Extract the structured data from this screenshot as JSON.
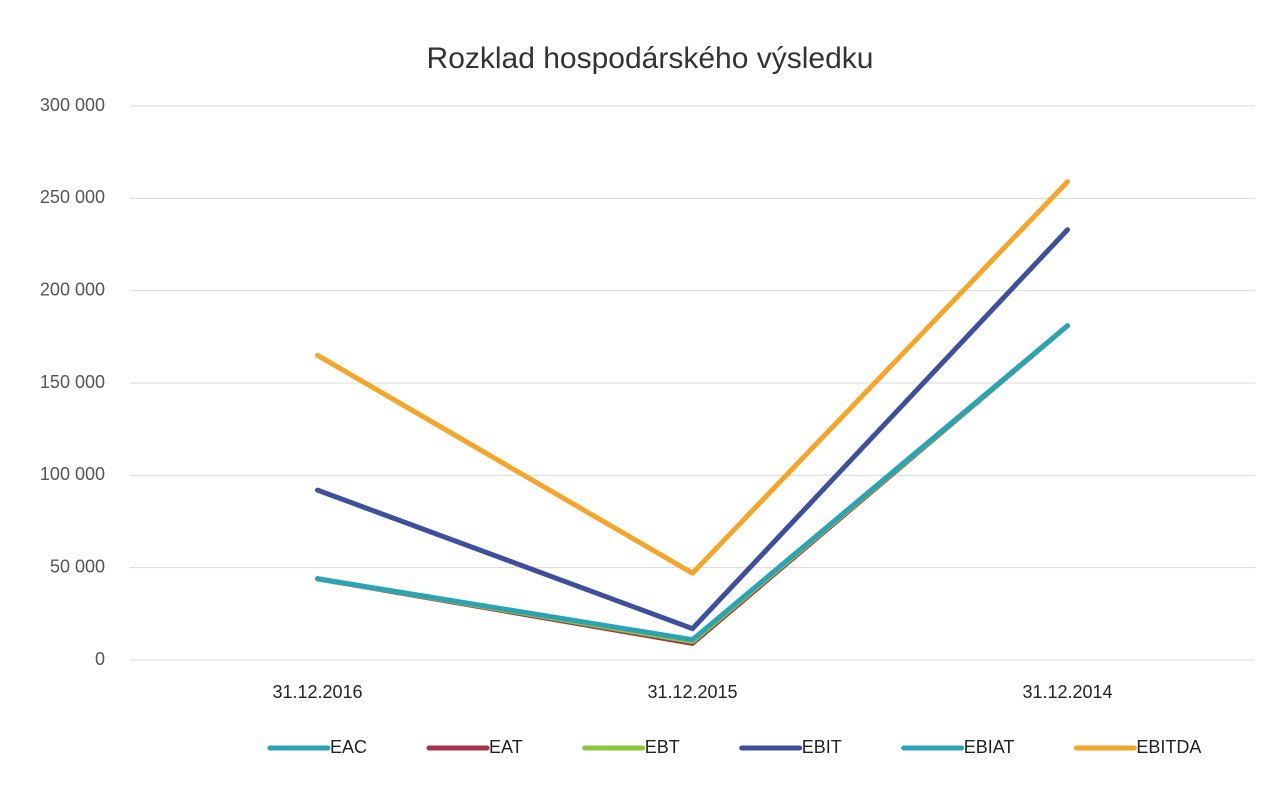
{
  "chart_data": {
    "type": "line",
    "title": "Rozklad hospodárského výsledku",
    "categories": [
      "31.12.2016",
      "31.12.2015",
      "31.12.2014"
    ],
    "series": [
      {
        "name": "EAC",
        "color": "#2aa3b5",
        "values": [
          44000,
          10000,
          181000
        ]
      },
      {
        "name": "EAT",
        "color": "#a4324a",
        "values": [
          44000,
          9000,
          181000
        ]
      },
      {
        "name": "EBT",
        "color": "#8cc63f",
        "values": [
          44000,
          10000,
          181000
        ]
      },
      {
        "name": "EBIT",
        "color": "#3e4f9c",
        "values": [
          92000,
          17000,
          233000
        ]
      },
      {
        "name": "EBIAT",
        "color": "#2aa3b5",
        "values": [
          44000,
          11000,
          181000
        ]
      },
      {
        "name": "EBITDA",
        "color": "#f4a62a",
        "values": [
          165000,
          47000,
          259000
        ]
      }
    ],
    "ylim": [
      0,
      300000
    ],
    "yticks": [
      0,
      {
        "value": 50000,
        "label": "50 000"
      },
      {
        "value": 100000,
        "label": "100 000"
      },
      {
        "value": 150000,
        "label": "150 000"
      },
      {
        "value": 200000,
        "label": "200 000"
      },
      {
        "value": 250000,
        "label": "250 000"
      },
      {
        "value": 300000,
        "label": "300 000"
      }
    ],
    "grid": true,
    "legend": "bottom"
  }
}
